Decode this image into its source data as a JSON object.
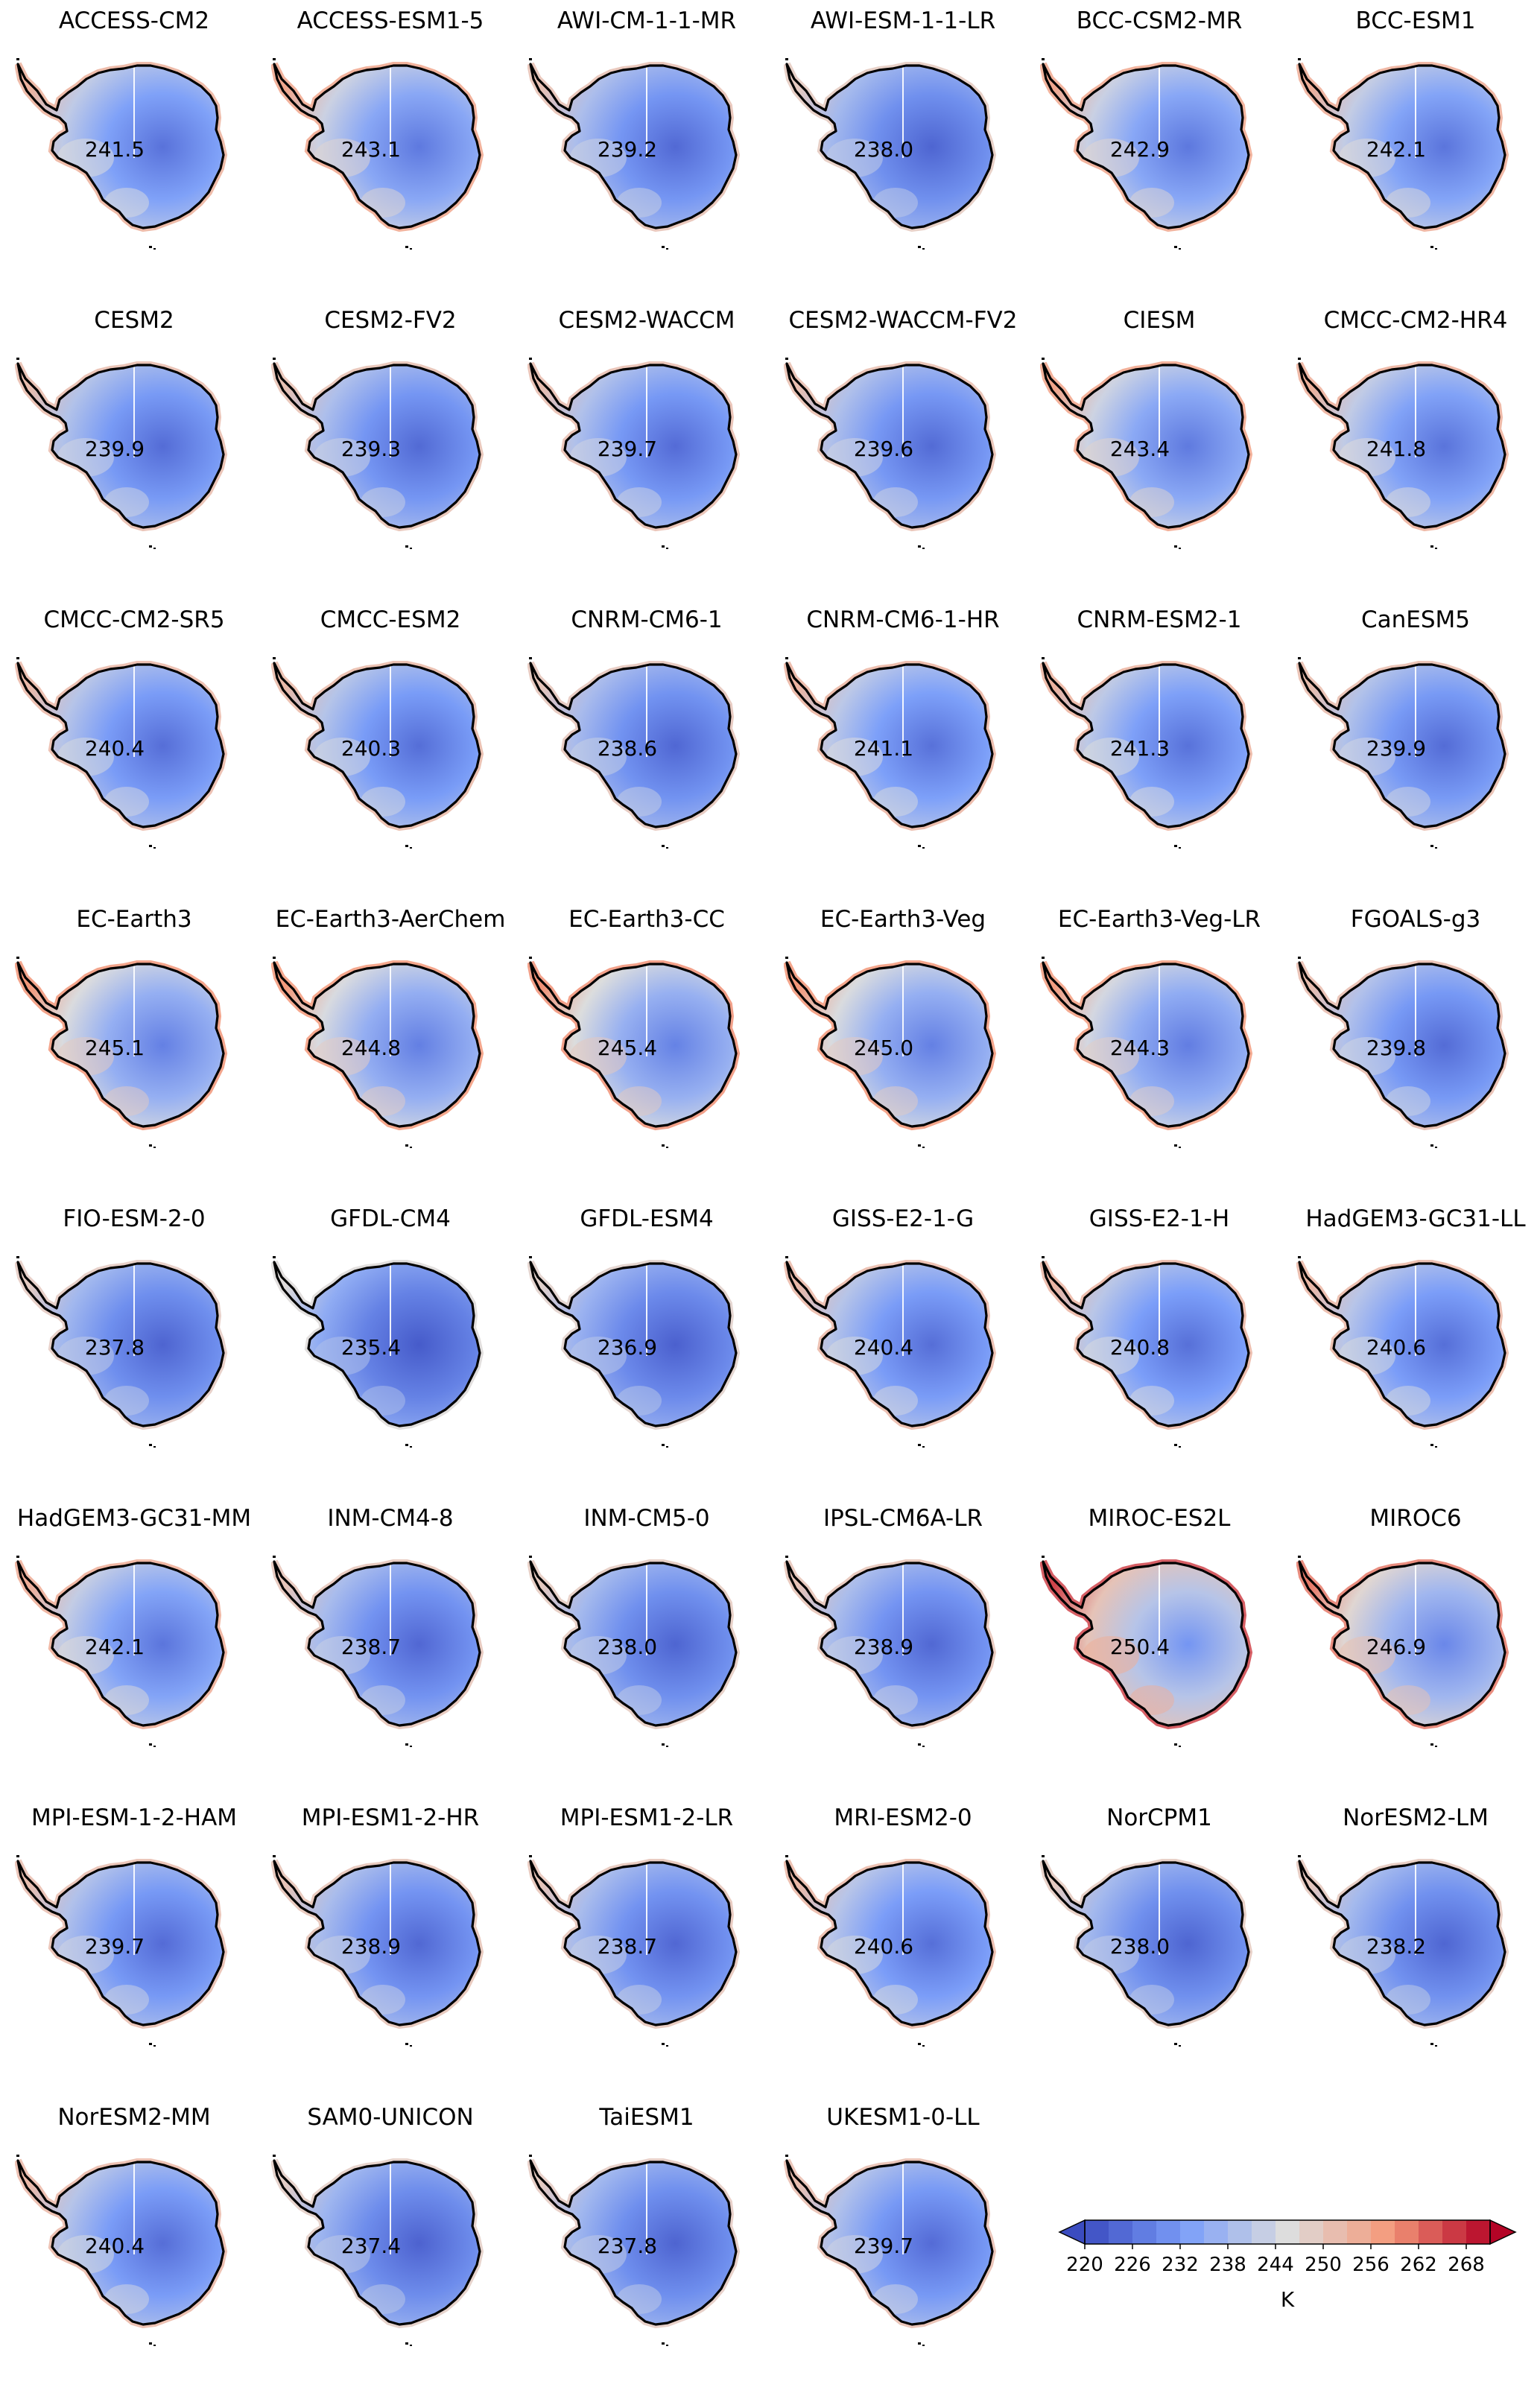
{
  "panels": [
    {
      "model": "ACCESS-CM2",
      "value": "241.5"
    },
    {
      "model": "ACCESS-ESM1-5",
      "value": "243.1"
    },
    {
      "model": "AWI-CM-1-1-MR",
      "value": "239.2"
    },
    {
      "model": "AWI-ESM-1-1-LR",
      "value": "238.0"
    },
    {
      "model": "BCC-CSM2-MR",
      "value": "242.9"
    },
    {
      "model": "BCC-ESM1",
      "value": "242.1"
    },
    {
      "model": "CESM2",
      "value": "239.9"
    },
    {
      "model": "CESM2-FV2",
      "value": "239.3"
    },
    {
      "model": "CESM2-WACCM",
      "value": "239.7"
    },
    {
      "model": "CESM2-WACCM-FV2",
      "value": "239.6"
    },
    {
      "model": "CIESM",
      "value": "243.4"
    },
    {
      "model": "CMCC-CM2-HR4",
      "value": "241.8"
    },
    {
      "model": "CMCC-CM2-SR5",
      "value": "240.4"
    },
    {
      "model": "CMCC-ESM2",
      "value": "240.3"
    },
    {
      "model": "CNRM-CM6-1",
      "value": "238.6"
    },
    {
      "model": "CNRM-CM6-1-HR",
      "value": "241.1"
    },
    {
      "model": "CNRM-ESM2-1",
      "value": "241.3"
    },
    {
      "model": "CanESM5",
      "value": "239.9"
    },
    {
      "model": "EC-Earth3",
      "value": "245.1"
    },
    {
      "model": "EC-Earth3-AerChem",
      "value": "244.8"
    },
    {
      "model": "EC-Earth3-CC",
      "value": "245.4"
    },
    {
      "model": "EC-Earth3-Veg",
      "value": "245.0"
    },
    {
      "model": "EC-Earth3-Veg-LR",
      "value": "244.3"
    },
    {
      "model": "FGOALS-g3",
      "value": "239.8"
    },
    {
      "model": "FIO-ESM-2-0",
      "value": "237.8"
    },
    {
      "model": "GFDL-CM4",
      "value": "235.4"
    },
    {
      "model": "GFDL-ESM4",
      "value": "236.9"
    },
    {
      "model": "GISS-E2-1-G",
      "value": "240.4"
    },
    {
      "model": "GISS-E2-1-H",
      "value": "240.8"
    },
    {
      "model": "HadGEM3-GC31-LL",
      "value": "240.6"
    },
    {
      "model": "HadGEM3-GC31-MM",
      "value": "242.1"
    },
    {
      "model": "INM-CM4-8",
      "value": "238.7"
    },
    {
      "model": "INM-CM5-0",
      "value": "238.0"
    },
    {
      "model": "IPSL-CM6A-LR",
      "value": "238.9"
    },
    {
      "model": "MIROC-ES2L",
      "value": "250.4"
    },
    {
      "model": "MIROC6",
      "value": "246.9"
    },
    {
      "model": "MPI-ESM-1-2-HAM",
      "value": "239.7"
    },
    {
      "model": "MPI-ESM1-2-HR",
      "value": "238.9"
    },
    {
      "model": "MPI-ESM1-2-LR",
      "value": "238.7"
    },
    {
      "model": "MRI-ESM2-0",
      "value": "240.6"
    },
    {
      "model": "NorCPM1",
      "value": "238.0"
    },
    {
      "model": "NorESM2-LM",
      "value": "238.2"
    },
    {
      "model": "NorESM2-MM",
      "value": "240.4"
    },
    {
      "model": "SAM0-UNICON",
      "value": "237.4"
    },
    {
      "model": "TaiESM1",
      "value": "237.8"
    },
    {
      "model": "UKESM1-0-LL",
      "value": "239.7"
    }
  ],
  "colorbar": {
    "label": "K",
    "ticks": [
      "220",
      "226",
      "232",
      "238",
      "244",
      "250",
      "256",
      "262",
      "268"
    ],
    "min": 220,
    "max": 271,
    "step": 3,
    "cmap": "coolwarm",
    "extend": "both"
  }
}
